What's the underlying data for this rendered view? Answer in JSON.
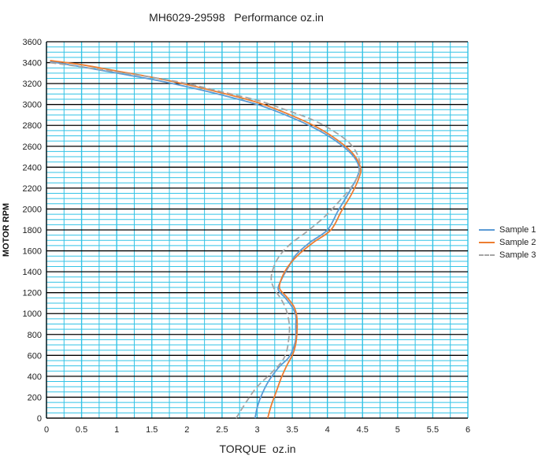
{
  "chart_data": {
    "type": "line",
    "title": "MH6029-29598   Performance oz.in",
    "xlabel": "TORQUE  oz.in",
    "ylabel": "MOTOR RPM",
    "xlim": [
      0,
      6
    ],
    "ylim": [
      0,
      3600
    ],
    "x_ticks": [
      "0",
      "0.5",
      "1",
      "1.5",
      "2",
      "2.5",
      "3",
      "3.5",
      "4",
      "4.5",
      "5",
      "5.5",
      "6"
    ],
    "y_ticks": [
      "0",
      "200",
      "400",
      "600",
      "800",
      "1000",
      "1200",
      "1400",
      "1600",
      "1800",
      "2000",
      "2200",
      "2400",
      "2600",
      "2800",
      "3000",
      "3200",
      "3400",
      "3600"
    ],
    "grid": true,
    "legend_position": "right",
    "colors": {
      "grid_minor": "#33c3e6",
      "grid_major": "#000000",
      "plot_background": "#ffffff"
    },
    "series": [
      {
        "name": "Sample 1",
        "color": "#5b9bd5",
        "dashed": false,
        "points": [
          [
            0.05,
            3410
          ],
          [
            0.5,
            3360
          ],
          [
            1.0,
            3300
          ],
          [
            1.5,
            3240
          ],
          [
            2.0,
            3170
          ],
          [
            2.5,
            3090
          ],
          [
            3.0,
            3000
          ],
          [
            3.4,
            2900
          ],
          [
            3.8,
            2780
          ],
          [
            4.1,
            2660
          ],
          [
            4.35,
            2520
          ],
          [
            4.45,
            2400
          ],
          [
            4.42,
            2300
          ],
          [
            4.3,
            2150
          ],
          [
            4.15,
            1980
          ],
          [
            4.0,
            1800
          ],
          [
            3.75,
            1680
          ],
          [
            3.55,
            1560
          ],
          [
            3.45,
            1450
          ],
          [
            3.35,
            1330
          ],
          [
            3.3,
            1230
          ],
          [
            3.4,
            1150
          ],
          [
            3.5,
            1060
          ],
          [
            3.55,
            980
          ],
          [
            3.55,
            880
          ],
          [
            3.55,
            760
          ],
          [
            3.52,
            680
          ],
          [
            3.45,
            580
          ],
          [
            3.3,
            480
          ],
          [
            3.15,
            340
          ],
          [
            3.05,
            200
          ],
          [
            3.0,
            100
          ],
          [
            2.97,
            0
          ]
        ]
      },
      {
        "name": "Sample 2",
        "color": "#ed7d31",
        "dashed": false,
        "points": [
          [
            0.05,
            3420
          ],
          [
            0.5,
            3380
          ],
          [
            1.0,
            3320
          ],
          [
            1.5,
            3260
          ],
          [
            2.0,
            3190
          ],
          [
            2.5,
            3110
          ],
          [
            3.0,
            3020
          ],
          [
            3.4,
            2920
          ],
          [
            3.8,
            2800
          ],
          [
            4.1,
            2680
          ],
          [
            4.35,
            2540
          ],
          [
            4.47,
            2400
          ],
          [
            4.45,
            2300
          ],
          [
            4.35,
            2150
          ],
          [
            4.2,
            1980
          ],
          [
            4.05,
            1800
          ],
          [
            3.8,
            1680
          ],
          [
            3.6,
            1570
          ],
          [
            3.45,
            1460
          ],
          [
            3.35,
            1340
          ],
          [
            3.32,
            1240
          ],
          [
            3.42,
            1160
          ],
          [
            3.52,
            1070
          ],
          [
            3.56,
            990
          ],
          [
            3.57,
            880
          ],
          [
            3.56,
            760
          ],
          [
            3.54,
            680
          ],
          [
            3.5,
            600
          ],
          [
            3.42,
            500
          ],
          [
            3.34,
            380
          ],
          [
            3.27,
            250
          ],
          [
            3.2,
            120
          ],
          [
            3.15,
            0
          ]
        ]
      },
      {
        "name": "Sample 3",
        "color": "#a5a5a5",
        "dashed": true,
        "points": [
          [
            0.05,
            3400
          ],
          [
            0.5,
            3360
          ],
          [
            1.0,
            3310
          ],
          [
            1.5,
            3260
          ],
          [
            2.0,
            3200
          ],
          [
            2.5,
            3120
          ],
          [
            3.0,
            3040
          ],
          [
            3.4,
            2950
          ],
          [
            3.8,
            2850
          ],
          [
            4.1,
            2740
          ],
          [
            4.33,
            2620
          ],
          [
            4.45,
            2480
          ],
          [
            4.45,
            2350
          ],
          [
            4.35,
            2220
          ],
          [
            4.15,
            2060
          ],
          [
            3.95,
            1920
          ],
          [
            3.7,
            1780
          ],
          [
            3.5,
            1680
          ],
          [
            3.35,
            1580
          ],
          [
            3.25,
            1470
          ],
          [
            3.2,
            1340
          ],
          [
            3.24,
            1240
          ],
          [
            3.33,
            1150
          ],
          [
            3.4,
            1060
          ],
          [
            3.44,
            970
          ],
          [
            3.46,
            870
          ],
          [
            3.45,
            760
          ],
          [
            3.42,
            640
          ],
          [
            3.35,
            540
          ],
          [
            3.2,
            430
          ],
          [
            3.0,
            300
          ],
          [
            2.85,
            160
          ],
          [
            2.7,
            0
          ]
        ]
      }
    ]
  }
}
